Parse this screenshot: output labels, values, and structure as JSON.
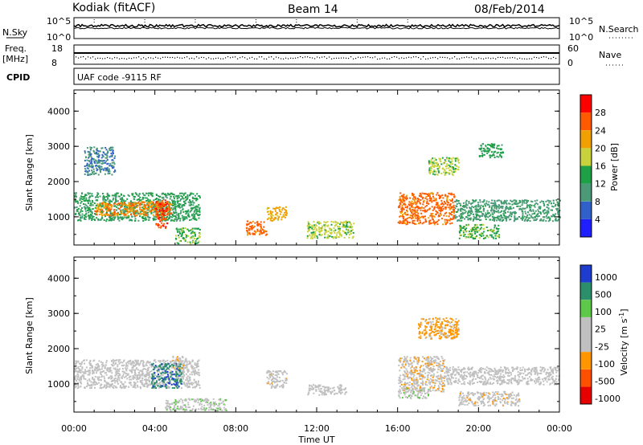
{
  "header": {
    "station": "Kodiak (fitACF)",
    "beam": "Beam 14",
    "date": "08/Feb/2014"
  },
  "sky_panel": {
    "left_label": "N.Sky",
    "right_label": "N.Search",
    "left_ticks": [
      "10^5",
      "10^0"
    ],
    "right_ticks": [
      "10^5",
      "10^0"
    ]
  },
  "freq_panel": {
    "left_label_1": "Freq.",
    "left_label_2": "[MHz]",
    "right_label": "Nave",
    "left_ticks": [
      "18",
      "8"
    ],
    "right_ticks": [
      "60",
      "0"
    ]
  },
  "cpid": {
    "label": "CPID",
    "text": "UAF code -9115 RF"
  },
  "axes": {
    "xlabel": "Time UT",
    "x_ticks": [
      "00:00",
      "04:00",
      "08:00",
      "12:00",
      "16:00",
      "20:00",
      "00:00"
    ],
    "ylabel": "Slant Range [km]",
    "y_ticks": [
      "1000",
      "2000",
      "3000",
      "4000"
    ]
  },
  "chart_data": [
    {
      "type": "heatmap",
      "title": "",
      "xlabel": "Time UT",
      "ylabel": "Slant Range [km]",
      "xlim": [
        0,
        24
      ],
      "ylim": [
        200,
        4600
      ],
      "colorbar": {
        "label": "Power [dB]",
        "ticks": [
          "4",
          "8",
          "12",
          "16",
          "20",
          "24",
          "28"
        ],
        "range": [
          0,
          30
        ],
        "colors": [
          "#1f1fff",
          "#3060c8",
          "#4a9a78",
          "#1ea046",
          "#c8d23c",
          "#f0a000",
          "#ff5a00",
          "#ff0000"
        ]
      },
      "regions": [
        {
          "t0": 0.0,
          "t1": 6.2,
          "r0": 900,
          "r1": 1700,
          "value": 12
        },
        {
          "t0": 1.0,
          "t1": 4.8,
          "r0": 1050,
          "r1": 1450,
          "value": 22
        },
        {
          "t0": 4.0,
          "t1": 4.6,
          "r0": 700,
          "r1": 1500,
          "value": 26
        },
        {
          "t0": 5.0,
          "t1": 6.2,
          "r0": 250,
          "r1": 700,
          "value": 14
        },
        {
          "t0": 8.5,
          "t1": 9.5,
          "r0": 500,
          "r1": 900,
          "value": 24
        },
        {
          "t0": 9.5,
          "t1": 10.5,
          "r0": 900,
          "r1": 1300,
          "value": 20
        },
        {
          "t0": 11.5,
          "t1": 13.8,
          "r0": 400,
          "r1": 900,
          "value": 16
        },
        {
          "t0": 16.0,
          "t1": 18.8,
          "r0": 800,
          "r1": 1700,
          "value": 24
        },
        {
          "t0": 18.8,
          "t1": 24.0,
          "r0": 900,
          "r1": 1500,
          "value": 10
        },
        {
          "t0": 19.0,
          "t1": 21.0,
          "r0": 400,
          "r1": 800,
          "value": 14
        },
        {
          "t0": 17.5,
          "t1": 19.0,
          "r0": 2200,
          "r1": 2700,
          "value": 16
        },
        {
          "t0": 20.0,
          "t1": 21.2,
          "r0": 2700,
          "r1": 3100,
          "value": 12
        },
        {
          "t0": 0.5,
          "t1": 2.0,
          "r0": 2200,
          "r1": 3000,
          "value": 8
        }
      ]
    },
    {
      "type": "heatmap",
      "title": "",
      "xlabel": "Time UT",
      "ylabel": "Slant Range [km]",
      "xlim": [
        0,
        24
      ],
      "ylim": [
        200,
        4600
      ],
      "colorbar": {
        "label": "Velocity [m s^-1]",
        "ticks": [
          "1000",
          "500",
          "100",
          "25",
          "-25",
          "-100",
          "-500",
          "-1000"
        ],
        "range": [
          -1200,
          1200
        ],
        "colors": [
          "#1e3ccd",
          "#2c8f6c",
          "#5ec84a",
          "#c0c0c0",
          "#c0c0c0",
          "#ff9600",
          "#ff5000",
          "#e60000"
        ]
      },
      "regions": [
        {
          "t0": 0.0,
          "t1": 6.2,
          "r0": 900,
          "r1": 1700,
          "value": 0
        },
        {
          "t0": 3.8,
          "t1": 5.3,
          "r0": 900,
          "r1": 1600,
          "value": 800
        },
        {
          "t0": 4.8,
          "t1": 5.5,
          "r0": 1400,
          "r1": 1800,
          "value": -200
        },
        {
          "t0": 4.5,
          "t1": 7.5,
          "r0": 250,
          "r1": 600,
          "value": 200
        },
        {
          "t0": 9.5,
          "t1": 10.5,
          "r0": 900,
          "r1": 1400,
          "value": -150
        },
        {
          "t0": 11.5,
          "t1": 13.5,
          "r0": 700,
          "r1": 1000,
          "value": 0
        },
        {
          "t0": 16.0,
          "t1": 18.3,
          "r0": 800,
          "r1": 1800,
          "value": -200
        },
        {
          "t0": 18.3,
          "t1": 24.0,
          "r0": 1000,
          "r1": 1500,
          "value": 0
        },
        {
          "t0": 17.0,
          "t1": 19.0,
          "r0": 2300,
          "r1": 2900,
          "value": -400
        },
        {
          "t0": 19.0,
          "t1": 22.0,
          "r0": 400,
          "r1": 800,
          "value": -150
        },
        {
          "t0": 16.0,
          "t1": 17.5,
          "r0": 600,
          "r1": 900,
          "value": 200
        }
      ]
    }
  ]
}
